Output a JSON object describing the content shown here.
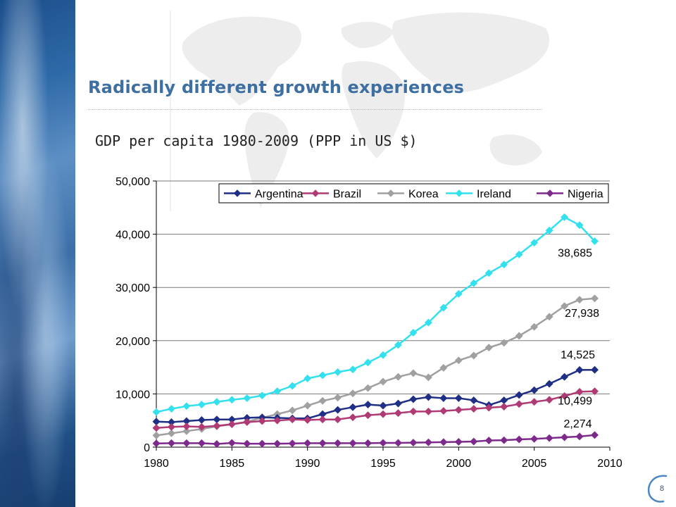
{
  "slide": {
    "title": "Radically different growth experiences",
    "page_number": "8"
  },
  "colors": {
    "title": "#3d6fa2",
    "side_strip": "#2f6aa8"
  },
  "chart_data": {
    "type": "line",
    "title": "GDP per capita 1980-2009 (PPP in US $)",
    "xlabel": "",
    "ylabel": "",
    "xlim": [
      1980,
      2010
    ],
    "ylim": [
      0,
      50000
    ],
    "x_ticks": [
      1980,
      1985,
      1990,
      1995,
      2000,
      2005,
      2010
    ],
    "x_tick_labels": [
      "1980",
      "1985",
      "1990",
      "1995",
      "2000",
      "2005",
      "2010"
    ],
    "y_ticks": [
      0,
      10000,
      20000,
      30000,
      40000,
      50000
    ],
    "y_tick_labels": [
      "0",
      "10,000",
      "20,000",
      "30,000",
      "40,000",
      "50,000"
    ],
    "grid": "horizontal",
    "legend_position": "top",
    "x": [
      1980,
      1981,
      1982,
      1983,
      1984,
      1985,
      1986,
      1987,
      1988,
      1989,
      1990,
      1991,
      1992,
      1993,
      1994,
      1995,
      1996,
      1997,
      1998,
      1999,
      2000,
      2001,
      2002,
      2003,
      2004,
      2005,
      2006,
      2007,
      2008,
      2009
    ],
    "series": [
      {
        "name": "Argentina",
        "color": "#1f2f86",
        "end_label": "14,525",
        "values": [
          4800,
          4700,
          4900,
          5100,
          5200,
          5200,
          5500,
          5600,
          5500,
          5400,
          5400,
          6200,
          7000,
          7500,
          8000,
          7800,
          8200,
          9000,
          9400,
          9200,
          9200,
          8800,
          7900,
          8800,
          9800,
          10700,
          11900,
          13200,
          14500,
          14525
        ]
      },
      {
        "name": "Brazil",
        "color": "#b03a74",
        "end_label": "10,499",
        "values": [
          3600,
          3800,
          3900,
          3800,
          4000,
          4300,
          4700,
          4900,
          5000,
          5200,
          5100,
          5200,
          5200,
          5600,
          6000,
          6200,
          6400,
          6700,
          6700,
          6800,
          7000,
          7200,
          7400,
          7600,
          8100,
          8500,
          8900,
          9600,
          10400,
          10499
        ]
      },
      {
        "name": "Korea",
        "color": "#a0a0a0",
        "end_label": "27,938",
        "values": [
          2200,
          2600,
          3000,
          3400,
          3900,
          4300,
          4800,
          5500,
          6200,
          6900,
          7800,
          8700,
          9300,
          10100,
          11100,
          12300,
          13200,
          13900,
          13100,
          14900,
          16300,
          17200,
          18700,
          19600,
          20900,
          22600,
          24500,
          26500,
          27700,
          27938
        ]
      },
      {
        "name": "Ireland",
        "color": "#33e0ee",
        "end_label": "38,685",
        "values": [
          6600,
          7200,
          7700,
          8000,
          8500,
          8900,
          9200,
          9700,
          10500,
          11500,
          12900,
          13500,
          14100,
          14600,
          15900,
          17300,
          19200,
          21500,
          23400,
          26200,
          28800,
          30800,
          32700,
          34300,
          36200,
          38400,
          40700,
          43200,
          41700,
          38685
        ]
      },
      {
        "name": "Nigeria",
        "color": "#7d2a8c",
        "end_label": "2,274",
        "values": [
          700,
          750,
          750,
          750,
          600,
          800,
          650,
          650,
          650,
          700,
          750,
          750,
          750,
          750,
          750,
          800,
          800,
          850,
          900,
          950,
          1000,
          1050,
          1250,
          1300,
          1450,
          1550,
          1700,
          1850,
          2000,
          2274
        ]
      }
    ]
  }
}
